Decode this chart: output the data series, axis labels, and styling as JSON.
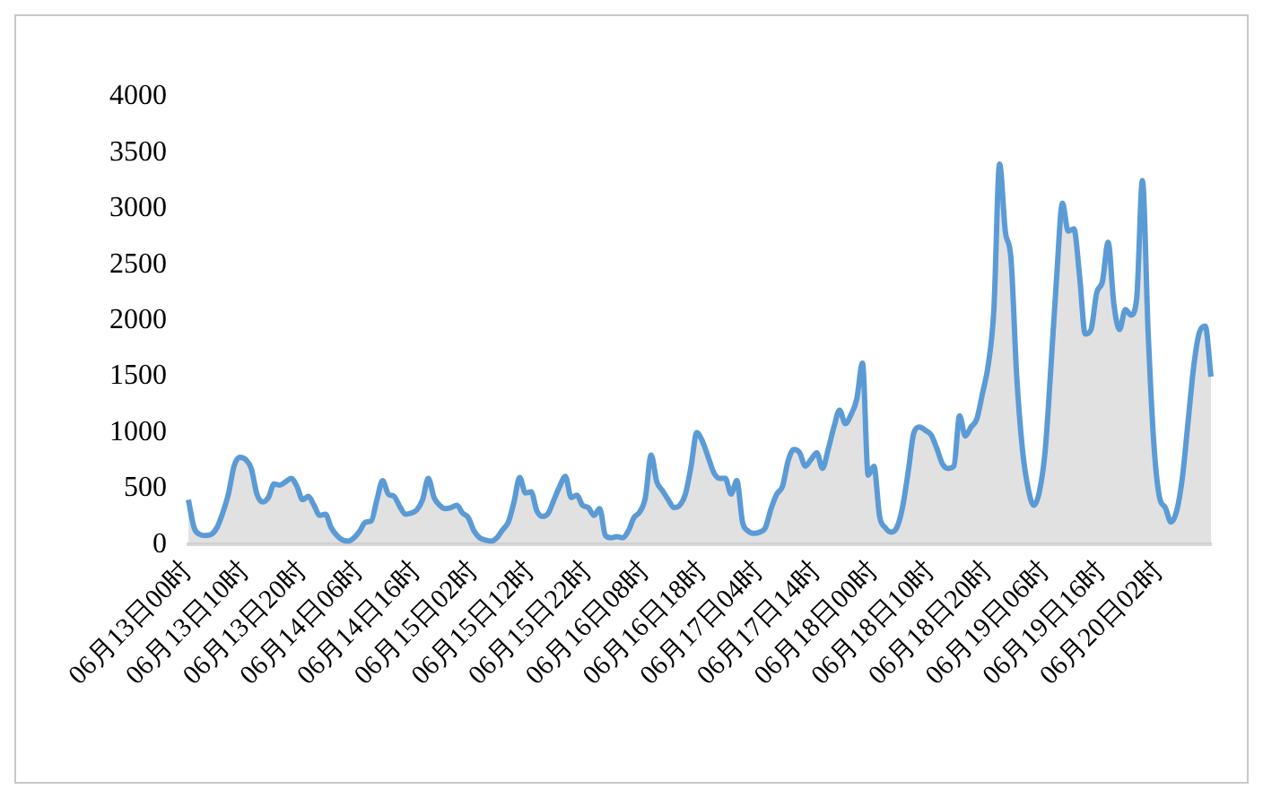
{
  "chart_data": {
    "type": "area",
    "categories": [
      "06月13日00时",
      null,
      null,
      null,
      null,
      null,
      null,
      null,
      null,
      null,
      "06月13日10时",
      null,
      null,
      null,
      null,
      null,
      null,
      null,
      null,
      null,
      "06月13日20时",
      null,
      null,
      null,
      null,
      null,
      null,
      null,
      null,
      null,
      "06月14日06时",
      null,
      null,
      null,
      null,
      null,
      null,
      null,
      null,
      null,
      "06月14日16时",
      null,
      null,
      null,
      null,
      null,
      null,
      null,
      null,
      null,
      "06月15日02时",
      null,
      null,
      null,
      null,
      null,
      null,
      null,
      null,
      null,
      "06月15日12时",
      null,
      null,
      null,
      null,
      null,
      null,
      null,
      null,
      null,
      "06月15日22时",
      null,
      null,
      null,
      null,
      null,
      null,
      null,
      null,
      null,
      "06月16日08时",
      null,
      null,
      null,
      null,
      null,
      null,
      null,
      null,
      null,
      "06月16日18时",
      null,
      null,
      null,
      null,
      null,
      null,
      null,
      null,
      null,
      "06月17日04时",
      null,
      null,
      null,
      null,
      null,
      null,
      null,
      null,
      null,
      "06月17日14时",
      null,
      null,
      null,
      null,
      null,
      null,
      null,
      null,
      null,
      "06月18日00时",
      null,
      null,
      null,
      null,
      null,
      null,
      null,
      null,
      null,
      "06月18日10时",
      null,
      null,
      null,
      null,
      null,
      null,
      null,
      null,
      null,
      "06月18日20时",
      null,
      null,
      null,
      null,
      null,
      null,
      null,
      null,
      null,
      "06月19日06时",
      null,
      null,
      null,
      null,
      null,
      null,
      null,
      null,
      null,
      "06月19日16时",
      null,
      null,
      null,
      null,
      null,
      null,
      null,
      null,
      null,
      "06月20日02时",
      null,
      null,
      null,
      null,
      null,
      null,
      null,
      null,
      null
    ],
    "series": [
      {
        "color": "#5b9bd5",
        "values": [
          400,
          150,
          90,
          80,
          90,
          150,
          280,
          450,
          700,
          780,
          760,
          680,
          450,
          380,
          420,
          540,
          530,
          560,
          590,
          520,
          400,
          430,
          350,
          260,
          270,
          150,
          80,
          40,
          30,
          60,
          120,
          200,
          210,
          400,
          570,
          450,
          430,
          340,
          270,
          280,
          310,
          400,
          590,
          420,
          350,
          320,
          330,
          350,
          280,
          240,
          120,
          60,
          40,
          30,
          60,
          130,
          200,
          380,
          600,
          460,
          470,
          300,
          250,
          280,
          400,
          520,
          610,
          420,
          440,
          350,
          330,
          260,
          320,
          80,
          60,
          70,
          60,
          120,
          240,
          290,
          420,
          800,
          560,
          480,
          400,
          330,
          350,
          450,
          700,
          1000,
          920,
          780,
          640,
          590,
          590,
          450,
          570,
          200,
          120,
          100,
          110,
          150,
          320,
          450,
          520,
          750,
          850,
          820,
          700,
          760,
          820,
          680,
          850,
          1050,
          1200,
          1080,
          1160,
          1300,
          1620,
          620,
          700,
          250,
          150,
          110,
          150,
          330,
          650,
          1000,
          1050,
          1020,
          980,
          860,
          720,
          680,
          700,
          1150,
          970,
          1050,
          1120,
          1350,
          1600,
          2100,
          3400,
          2800,
          2550,
          1500,
          850,
          500,
          350,
          480,
          850,
          1600,
          2400,
          3050,
          2800,
          2820,
          2400,
          1880,
          1920,
          2250,
          2350,
          2700,
          2150,
          1920,
          2100,
          2050,
          2200,
          3250,
          1900,
          900,
          420,
          330,
          200,
          300,
          600,
          1100,
          1600,
          1900,
          1950,
          1500
        ]
      }
    ],
    "ylim": [
      0,
      4000
    ],
    "yticks": [
      0,
      500,
      1000,
      1500,
      2000,
      2500,
      3000,
      3500,
      4000
    ],
    "grid": false,
    "legend": false
  }
}
